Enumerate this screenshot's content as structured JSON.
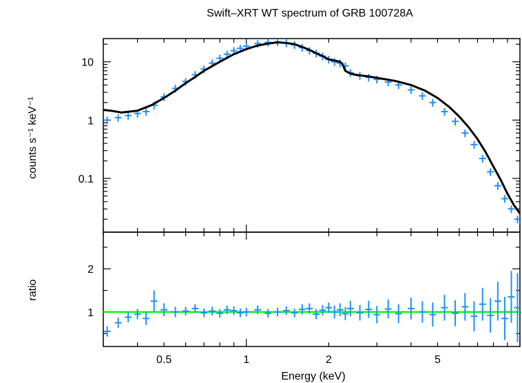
{
  "chart_data": [
    {
      "type": "scatter",
      "title": "Swift–XRT WT spectrum of GRB 100728A",
      "xlabel": "",
      "ylabel": "counts s⁻¹ keV⁻¹",
      "xscale": "log",
      "yscale": "log",
      "xlim": [
        0.3,
        10
      ],
      "ylim": [
        0.012,
        25
      ],
      "y_tick_labels": [
        "10",
        "1",
        "0.1"
      ],
      "y_ticks": [
        10,
        1,
        0.1
      ],
      "series": [
        {
          "kind": "data",
          "color": "#1e90ff",
          "x": [
            0.31,
            0.34,
            0.37,
            0.4,
            0.43,
            0.46,
            0.5,
            0.55,
            0.6,
            0.65,
            0.7,
            0.75,
            0.8,
            0.85,
            0.9,
            0.95,
            1.0,
            1.1,
            1.2,
            1.3,
            1.4,
            1.5,
            1.6,
            1.7,
            1.8,
            1.9,
            2.0,
            2.1,
            2.2,
            2.3,
            2.4,
            2.6,
            2.8,
            3.0,
            3.3,
            3.6,
            4.0,
            4.4,
            4.8,
            5.3,
            5.8,
            6.3,
            6.8,
            7.3,
            7.8,
            8.3,
            8.8,
            9.3,
            9.8
          ],
          "y": [
            1.0,
            1.1,
            1.2,
            1.3,
            1.4,
            1.8,
            2.5,
            3.5,
            4.6,
            6.0,
            7.5,
            9.5,
            11.5,
            13.5,
            15.5,
            17.0,
            18.5,
            20.5,
            21.5,
            22.0,
            21.0,
            19.5,
            17.5,
            15.5,
            14.0,
            12.5,
            11.0,
            10.0,
            9.5,
            8.5,
            6.5,
            5.8,
            5.4,
            5.0,
            4.5,
            4.0,
            3.3,
            2.6,
            2.0,
            1.4,
            0.95,
            0.6,
            0.38,
            0.22,
            0.13,
            0.075,
            0.045,
            0.03,
            0.02
          ],
          "yerr_frac": 0.15
        },
        {
          "kind": "model",
          "color": "#000000",
          "x": [
            0.3,
            0.32,
            0.35,
            0.4,
            0.45,
            0.5,
            0.55,
            0.6,
            0.65,
            0.7,
            0.8,
            0.9,
            1.0,
            1.1,
            1.2,
            1.3,
            1.4,
            1.5,
            1.6,
            1.7,
            1.8,
            1.9,
            2.0,
            2.1,
            2.2,
            2.25,
            2.3,
            2.4,
            2.5,
            2.8,
            3.0,
            3.5,
            4.0,
            4.5,
            5.0,
            5.5,
            6.0,
            6.5,
            7.0,
            7.5,
            8.0,
            8.5,
            9.0,
            9.5,
            10.0
          ],
          "y": [
            1.5,
            1.45,
            1.35,
            1.45,
            1.8,
            2.4,
            3.2,
            4.3,
            5.5,
            7.0,
            10.0,
            13.5,
            16.5,
            19.0,
            20.5,
            21.5,
            21.0,
            20.0,
            18.0,
            16.0,
            14.0,
            12.5,
            11.0,
            10.5,
            10.0,
            9.0,
            7.0,
            6.3,
            6.0,
            5.6,
            5.3,
            4.7,
            4.0,
            3.2,
            2.4,
            1.7,
            1.15,
            0.75,
            0.47,
            0.28,
            0.16,
            0.095,
            0.055,
            0.035,
            0.025
          ]
        }
      ]
    },
    {
      "type": "scatter",
      "title": "",
      "xlabel": "Energy (keV)",
      "ylabel": "ratio",
      "xscale": "log",
      "yscale": "linear",
      "xlim": [
        0.3,
        10
      ],
      "ylim": [
        0.2,
        2.85
      ],
      "x_ticks": [
        0.5,
        1,
        2,
        5
      ],
      "x_tick_labels": [
        "0.5",
        "1",
        "2",
        "5"
      ],
      "y_ticks": [
        1,
        2
      ],
      "y_tick_labels": [
        "1",
        "2"
      ],
      "reference_line": {
        "y": 1.0,
        "color": "#00ff00"
      },
      "series": [
        {
          "kind": "data",
          "color": "#1e90ff",
          "x": [
            0.31,
            0.34,
            0.37,
            0.4,
            0.43,
            0.46,
            0.5,
            0.55,
            0.6,
            0.65,
            0.7,
            0.75,
            0.8,
            0.85,
            0.9,
            0.95,
            1.0,
            1.1,
            1.2,
            1.3,
            1.4,
            1.5,
            1.6,
            1.7,
            1.8,
            1.9,
            2.0,
            2.1,
            2.2,
            2.3,
            2.4,
            2.6,
            2.8,
            3.0,
            3.3,
            3.6,
            4.0,
            4.4,
            4.8,
            5.3,
            5.8,
            6.3,
            6.8,
            7.3,
            7.8,
            8.3,
            8.8,
            9.3,
            9.8
          ],
          "y": [
            0.55,
            0.75,
            0.88,
            0.95,
            0.85,
            1.25,
            1.05,
            1.0,
            1.02,
            1.08,
            0.98,
            1.02,
            0.97,
            1.05,
            1.03,
            0.98,
            1.0,
            1.05,
            0.97,
            1.0,
            1.03,
            0.98,
            1.06,
            1.08,
            0.95,
            1.04,
            1.1,
            1.0,
            1.05,
            0.96,
            1.08,
            0.98,
            1.06,
            0.94,
            1.07,
            0.96,
            1.08,
            1.0,
            0.94,
            1.1,
            0.97,
            1.12,
            0.9,
            1.18,
            0.92,
            1.25,
            0.85,
            1.35,
            1.1
          ],
          "yerr": [
            0.12,
            0.12,
            0.12,
            0.12,
            0.15,
            0.25,
            0.15,
            0.12,
            0.1,
            0.1,
            0.1,
            0.1,
            0.1,
            0.1,
            0.1,
            0.1,
            0.1,
            0.1,
            0.1,
            0.1,
            0.1,
            0.1,
            0.12,
            0.12,
            0.12,
            0.12,
            0.12,
            0.15,
            0.15,
            0.15,
            0.18,
            0.18,
            0.2,
            0.2,
            0.22,
            0.22,
            0.25,
            0.25,
            0.28,
            0.3,
            0.3,
            0.32,
            0.35,
            0.38,
            0.4,
            0.45,
            0.5,
            0.6,
            0.8
          ]
        }
      ]
    }
  ]
}
